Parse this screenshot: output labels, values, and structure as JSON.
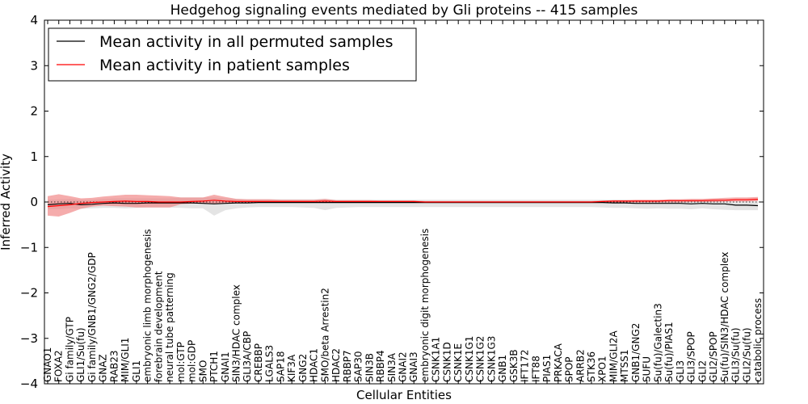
{
  "chart_data": {
    "type": "line",
    "title": "Hedgehog signaling events mediated by Gli proteins -- 415 samples",
    "xlabel": "Cellular Entities",
    "ylabel": "Inferred Activity",
    "ylim": [
      -4,
      4
    ],
    "yticks": [
      "4",
      "3",
      "2",
      "1",
      "0",
      "−1",
      "−2",
      "−3",
      "−4"
    ],
    "grid": false,
    "legend_position": "top-left",
    "categories": [
      "GNAO1",
      "FOXA2",
      "Gi family/GTP",
      "GLI1/Su(fu)",
      "Gi family/GNB1/GNG2/GDP",
      "GNAZ",
      "RAB23",
      "MIM/GLI1",
      "GLI1",
      "embryonic limb morphogenesis",
      "forebrain development",
      "neural tube patterning",
      "mol:GTP",
      "mol:GDP",
      "SMO",
      "PTCH1",
      "GNAI1",
      "SIN3/HDAC complex",
      "GLI3A/CBP",
      "CREBBP",
      "LGALS3",
      "SAP18",
      "KIF3A",
      "GNG2",
      "HDAC1",
      "SMO/beta Arrestin2",
      "HDAC2",
      "RBBP7",
      "SAP30",
      "SIN3B",
      "RBBP4",
      "SIN3A",
      "GNAI2",
      "GNAI3",
      "embryonic digit morphogenesis",
      "CSNK1A1",
      "CSNK1D",
      "CSNK1E",
      "CSNK1G1",
      "CSNK1G2",
      "CSNK1G3",
      "GNB1",
      "GSK3B",
      "IFT172",
      "IFT88",
      "PIAS1",
      "PRKACA",
      "SPOP",
      "ARRB2",
      "STK36",
      "XPO1",
      "MIM/GLI2A",
      "MTSS1",
      "GNB1/GNG2",
      "SUFU",
      "Su(fu)/Galectin3",
      "Su(fu)/PIAS1",
      "GLI3",
      "GLI3/SPOP",
      "GLI2",
      "GLI2/SPOP",
      "Su(fu)/SIN3/HDAC complex",
      "GLI3/Su(fu)",
      "GLI2/Su(fu)",
      "catabolic process"
    ],
    "series": [
      {
        "name": "Mean activity in all permuted samples",
        "color": "#000000",
        "band_color": "#d9d9d9",
        "values": [
          -0.06,
          -0.04,
          -0.03,
          -0.06,
          -0.05,
          -0.03,
          -0.02,
          -0.03,
          -0.03,
          -0.02,
          -0.02,
          -0.02,
          -0.02,
          -0.02,
          -0.03,
          -0.04,
          -0.03,
          -0.02,
          -0.02,
          -0.01,
          -0.01,
          -0.01,
          -0.01,
          -0.01,
          -0.01,
          -0.01,
          -0.01,
          -0.01,
          -0.01,
          -0.01,
          -0.01,
          -0.01,
          -0.01,
          -0.01,
          -0.01,
          -0.01,
          -0.01,
          -0.01,
          -0.01,
          -0.01,
          -0.01,
          -0.01,
          -0.01,
          -0.01,
          -0.01,
          -0.01,
          -0.01,
          -0.01,
          -0.01,
          -0.01,
          -0.01,
          -0.02,
          -0.02,
          -0.03,
          -0.03,
          -0.03,
          -0.03,
          -0.03,
          -0.04,
          -0.03,
          -0.04,
          -0.04,
          -0.07,
          -0.07,
          -0.08
        ],
        "band_low": [
          -0.16,
          -0.16,
          -0.14,
          -0.15,
          -0.14,
          -0.13,
          -0.13,
          -0.14,
          -0.13,
          -0.12,
          -0.12,
          -0.12,
          -0.13,
          -0.14,
          -0.14,
          -0.3,
          -0.18,
          -0.14,
          -0.12,
          -0.11,
          -0.11,
          -0.11,
          -0.11,
          -0.12,
          -0.13,
          -0.18,
          -0.13,
          -0.12,
          -0.11,
          -0.11,
          -0.11,
          -0.11,
          -0.11,
          -0.11,
          -0.11,
          -0.11,
          -0.11,
          -0.11,
          -0.11,
          -0.11,
          -0.11,
          -0.11,
          -0.11,
          -0.11,
          -0.11,
          -0.11,
          -0.11,
          -0.11,
          -0.11,
          -0.11,
          -0.12,
          -0.13,
          -0.13,
          -0.14,
          -0.15,
          -0.14,
          -0.15,
          -0.15,
          -0.16,
          -0.14,
          -0.16,
          -0.17,
          -0.18,
          -0.18,
          -0.18
        ],
        "band_high": [
          0.05,
          0.06,
          0.07,
          0.05,
          0.05,
          0.07,
          0.08,
          0.08,
          0.08,
          0.08,
          0.08,
          0.08,
          0.1,
          0.1,
          0.1,
          0.1,
          0.08,
          0.07,
          0.06,
          0.06,
          0.06,
          0.06,
          0.06,
          0.06,
          0.06,
          0.07,
          0.05,
          0.05,
          0.05,
          0.05,
          0.05,
          0.05,
          0.05,
          0.05,
          0.05,
          0.05,
          0.05,
          0.05,
          0.05,
          0.05,
          0.05,
          0.05,
          0.05,
          0.05,
          0.05,
          0.05,
          0.05,
          0.05,
          0.05,
          0.05,
          0.05,
          0.05,
          0.05,
          0.04,
          0.04,
          0.04,
          0.04,
          0.04,
          0.03,
          0.04,
          0.03,
          0.03,
          0.02,
          0.02,
          0.01
        ]
      },
      {
        "name": "Mean activity in patient samples",
        "color": "#ff0000",
        "band_color": "#f08080",
        "values": [
          -0.1,
          -0.08,
          -0.06,
          -0.03,
          -0.01,
          0.0,
          0.01,
          0.02,
          0.01,
          0.01,
          0.0,
          0.0,
          0.0,
          0.01,
          0.02,
          0.04,
          0.02,
          0.01,
          0.01,
          0.01,
          0.01,
          0.01,
          0.01,
          0.01,
          0.01,
          0.02,
          0.01,
          0.01,
          0.01,
          0.01,
          0.01,
          0.01,
          0.01,
          0.01,
          0.0,
          0.0,
          0.0,
          0.0,
          0.0,
          0.0,
          0.0,
          0.0,
          0.0,
          0.0,
          0.0,
          0.0,
          0.0,
          0.0,
          0.0,
          0.0,
          0.01,
          0.02,
          0.02,
          0.02,
          0.02,
          0.02,
          0.03,
          0.03,
          0.03,
          0.03,
          0.04,
          0.04,
          0.05,
          0.05,
          0.06
        ],
        "band_low": [
          -0.3,
          -0.32,
          -0.24,
          -0.15,
          -0.1,
          -0.08,
          -0.09,
          -0.1,
          -0.12,
          -0.12,
          -0.12,
          -0.12,
          -0.05,
          -0.03,
          -0.03,
          -0.04,
          -0.03,
          -0.02,
          -0.02,
          -0.01,
          -0.01,
          -0.01,
          -0.01,
          -0.01,
          -0.01,
          -0.02,
          -0.01,
          -0.01,
          -0.01,
          -0.01,
          -0.01,
          -0.01,
          -0.01,
          -0.01,
          -0.01,
          -0.01,
          -0.01,
          -0.01,
          -0.01,
          -0.01,
          -0.01,
          -0.01,
          -0.01,
          -0.01,
          -0.01,
          -0.01,
          -0.01,
          -0.01,
          -0.01,
          -0.01,
          -0.01,
          -0.01,
          -0.01,
          -0.01,
          -0.01,
          -0.01,
          -0.01,
          -0.01,
          0.0,
          0.0,
          0.0,
          0.01,
          0.01,
          0.01,
          0.02
        ],
        "band_high": [
          0.13,
          0.17,
          0.13,
          0.08,
          0.09,
          0.12,
          0.14,
          0.16,
          0.16,
          0.15,
          0.14,
          0.13,
          0.1,
          0.1,
          0.1,
          0.16,
          0.11,
          0.07,
          0.06,
          0.06,
          0.06,
          0.05,
          0.05,
          0.05,
          0.05,
          0.07,
          0.04,
          0.04,
          0.04,
          0.04,
          0.03,
          0.03,
          0.03,
          0.03,
          0.02,
          0.02,
          0.02,
          0.02,
          0.02,
          0.02,
          0.02,
          0.02,
          0.02,
          0.02,
          0.02,
          0.02,
          0.02,
          0.02,
          0.02,
          0.02,
          0.03,
          0.04,
          0.04,
          0.05,
          0.05,
          0.05,
          0.06,
          0.06,
          0.07,
          0.07,
          0.08,
          0.09,
          0.1,
          0.1,
          0.11
        ]
      }
    ],
    "reference_line": {
      "y": 0,
      "style": "dotted"
    }
  }
}
